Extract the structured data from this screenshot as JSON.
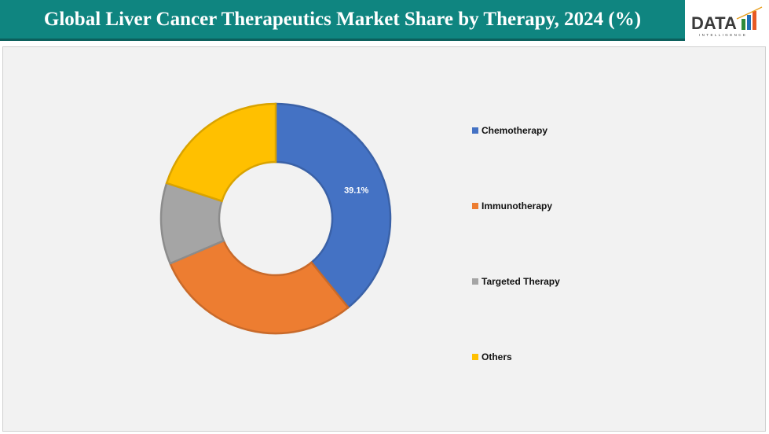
{
  "header": {
    "title": "Global Liver Cancer Therapeutics Market Share by Therapy, 2024 (%)"
  },
  "logo": {
    "text": "DATA",
    "subtext": "INTELLIGENCE"
  },
  "chart_data": {
    "type": "pie",
    "variant": "donut",
    "title": "",
    "categories": [
      "Chemotherapy",
      "Immunotherapy",
      "Targeted Therapy",
      "Others"
    ],
    "values": [
      39.1,
      29.5,
      11.4,
      20.0
    ],
    "colors": [
      "#4472c4",
      "#ed7d31",
      "#a5a5a5",
      "#ffc000"
    ],
    "data_labels": [
      "39.1%",
      "",
      "",
      ""
    ],
    "legend_placement": "right"
  }
}
